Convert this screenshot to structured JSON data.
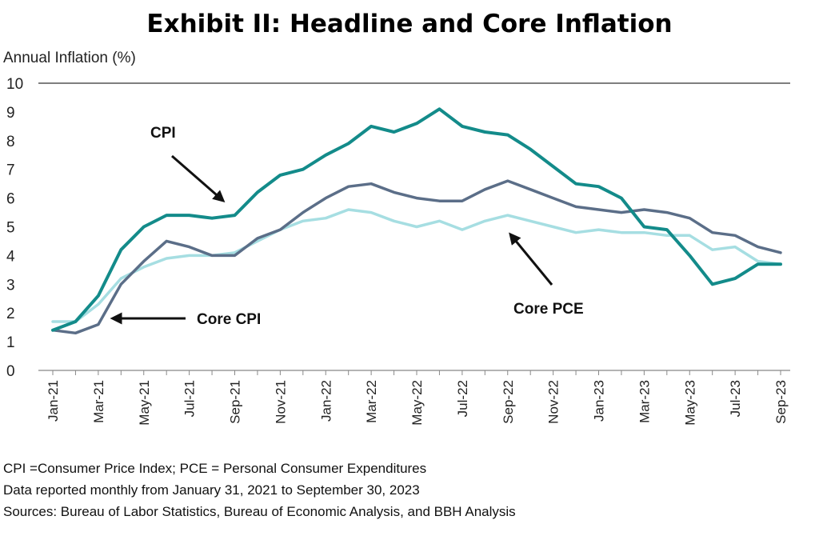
{
  "chart_data": {
    "type": "line",
    "title": "Exhibit II: Headline and Core Inflation",
    "ylabel": "Annual Inflation (%)",
    "xlabel": "",
    "ylim": [
      0,
      10
    ],
    "yticks": [
      0,
      1,
      2,
      3,
      4,
      5,
      6,
      7,
      8,
      9,
      10
    ],
    "x": [
      "Jan-21",
      "Feb-21",
      "Mar-21",
      "Apr-21",
      "May-21",
      "Jun-21",
      "Jul-21",
      "Aug-21",
      "Sep-21",
      "Oct-21",
      "Nov-21",
      "Dec-21",
      "Jan-22",
      "Feb-22",
      "Mar-22",
      "Apr-22",
      "May-22",
      "Jun-22",
      "Jul-22",
      "Aug-22",
      "Sep-22",
      "Oct-22",
      "Nov-22",
      "Dec-22",
      "Jan-23",
      "Feb-23",
      "Mar-23",
      "Apr-23",
      "May-23",
      "Jun-23",
      "Jul-23",
      "Aug-23",
      "Sep-23"
    ],
    "xtick_labels": [
      "Jan-21",
      "Mar-21",
      "May-21",
      "Jul-21",
      "Sep-21",
      "Nov-21",
      "Jan-22",
      "Mar-22",
      "May-22",
      "Jul-22",
      "Sep-22",
      "Nov-22",
      "Jan-23",
      "Mar-23",
      "May-23",
      "Jul-23",
      "Sep-23"
    ],
    "series": [
      {
        "name": "CPI",
        "color": "#138b8a",
        "values": [
          1.4,
          1.7,
          2.6,
          4.2,
          5.0,
          5.4,
          5.4,
          5.3,
          5.4,
          6.2,
          6.8,
          7.0,
          7.5,
          7.9,
          8.5,
          8.3,
          8.6,
          9.1,
          8.5,
          8.3,
          8.2,
          7.7,
          7.1,
          6.5,
          6.4,
          6.0,
          5.0,
          4.9,
          4.0,
          3.0,
          3.2,
          3.7,
          3.7
        ]
      },
      {
        "name": "Core CPI",
        "color": "#5b6e88",
        "values": [
          1.4,
          1.3,
          1.6,
          3.0,
          3.8,
          4.5,
          4.3,
          4.0,
          4.0,
          4.6,
          4.9,
          5.5,
          6.0,
          6.4,
          6.5,
          6.2,
          6.0,
          5.9,
          5.9,
          6.3,
          6.6,
          6.3,
          6.0,
          5.7,
          5.6,
          5.5,
          5.6,
          5.5,
          5.3,
          4.8,
          4.7,
          4.3,
          4.1
        ]
      },
      {
        "name": "Core PCE",
        "color": "#a6dee2",
        "values": [
          1.7,
          1.7,
          2.3,
          3.2,
          3.6,
          3.9,
          4.0,
          4.0,
          4.1,
          4.5,
          4.9,
          5.2,
          5.3,
          5.6,
          5.5,
          5.2,
          5.0,
          5.2,
          4.9,
          5.2,
          5.4,
          5.2,
          5.0,
          4.8,
          4.9,
          4.8,
          4.8,
          4.7,
          4.7,
          4.2,
          4.3,
          3.8,
          3.7
        ]
      }
    ],
    "annotations": [
      {
        "text": "CPI",
        "series": "CPI"
      },
      {
        "text": "Core CPI",
        "series": "Core CPI"
      },
      {
        "text": "Core PCE",
        "series": "Core PCE"
      }
    ],
    "legend": "none",
    "grid": false
  },
  "footnotes": [
    "CPI =Consumer Price Index; PCE = Personal Consumer Expenditures",
    "Data reported monthly from January 31, 2021 to September 30, 2023",
    "Sources: Bureau of Labor Statistics, Bureau of Economic Analysis, and BBH Analysis"
  ]
}
